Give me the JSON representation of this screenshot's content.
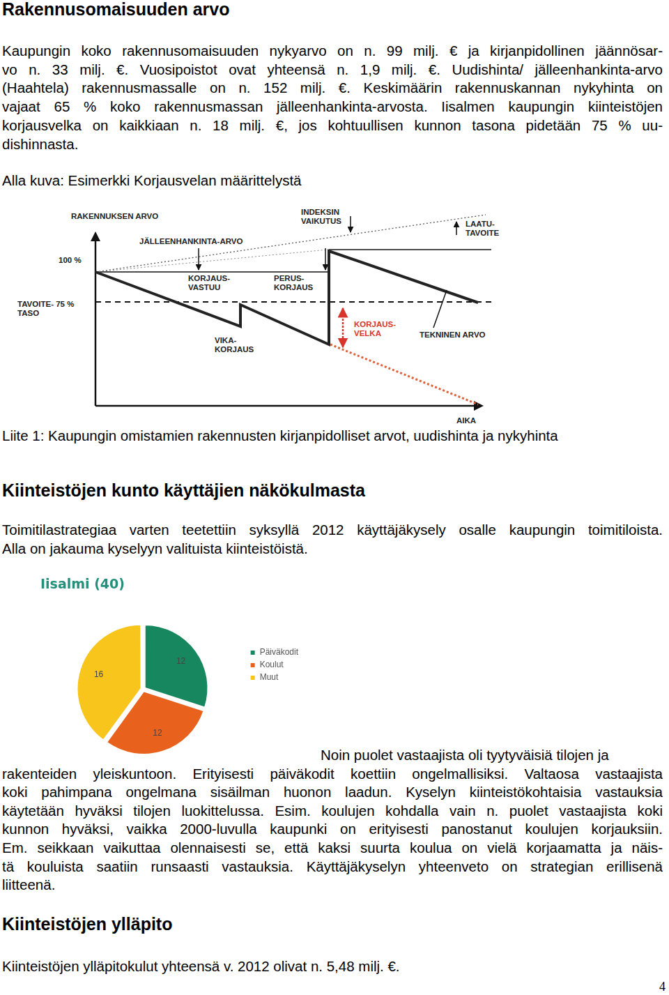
{
  "heading_1": "Rakennusomaisuuden arvo",
  "paragraph_1": [
    "Kaupungin koko rakennusomaisuuden nykyarvo on n. 99 milj. € ja kirjanpidollinen jäännösar-",
    "vo n. 33 milj. €. Vuosipoistot ovat yhteensä n. 1,9 milj. €. Uudishinta/ jälleenhankinta-arvo",
    "(Haahtela) rakennusmassalle on n. 152 milj. €. Keskimäärin rakennuskannan nykyhinta on",
    "vajaat 65 % koko rakennusmassan jälleenhankinta-arvosta. Iisalmen kaupungin kiinteistöjen",
    "korjausvelka on kaikkiaan n. 18 milj. €, jos kohtuullisen kunnon tasona pidetään 75 % uu-",
    "dishinnasta."
  ],
  "figure_caption": "Alla kuva: Esimerkki Korjausvelan määrittelystä",
  "diagram": {
    "building_value": "RAKENNUKSEN ARVO",
    "replacement_value": "JÄLLEENHANKINTA-ARVO",
    "index_effect": [
      "INDEKSIN",
      "VAIKUTUS"
    ],
    "quality_target": [
      "LAATU-",
      "TAVOITE"
    ],
    "level_100": "100 %",
    "target_level": [
      "TAVOITE-  75 %",
      "TASO"
    ],
    "repair_responsibility": [
      "KORJAUS-",
      "VASTUU"
    ],
    "renovation": [
      "PERUS-",
      "KORJAUS"
    ],
    "fault_repair": [
      "VIKA-",
      "KORJAUS"
    ],
    "repair_debt": [
      "KORJAUS-",
      "VELKA"
    ],
    "technical_value": "TEKNINEN ARVO",
    "time_axis": "AIKA"
  },
  "appendix_note": "Liite 1: Kaupungin omistamien rakennusten kirjanpidolliset arvot, uudishinta ja nykyhinta",
  "heading_2": "Kiinteistöjen kunto käyttäjien näkökulmasta",
  "paragraph_2": [
    "Toimitilastrategiaa varten teetettiin syksyllä 2012 käyttäjäkysely osalle kaupungin toimitiloista.",
    "Alla on jakauma kyselyyn valituista kiinteistöistä."
  ],
  "chart_data": {
    "type": "pie",
    "title": "Iisalmi (40)",
    "categories": [
      "Päiväkodit",
      "Koulut",
      "Muut"
    ],
    "values": [
      12,
      12,
      16
    ],
    "colors": [
      "#17875f",
      "#e8621d",
      "#f7c51c"
    ],
    "data_labels": true,
    "legend": "right"
  },
  "paragraph_3": [
    "Noin puolet vastaajista oli tyytyväisiä tilojen ja",
    "rakenteiden yleiskuntoon. Erityisesti päiväkodit koettiin ongelmallisiksi. Valtaosa vastaajista",
    "koki pahimpana ongelmana sisäilman huonon laadun. Kyselyn kiinteistökohtaisia vastauksia",
    "käytetään hyväksi tilojen luokittelussa. Esim. koulujen kohdalla vain n. puolet vastaajista koki",
    "kunnon hyväksi, vaikka 2000-luvulla kaupunki on erityisesti panostanut koulujen korjauksiin.",
    "Em. seikkaan vaikuttaa olennaisesti se, että kaksi suurta koulua on vielä korjaamatta ja näis-",
    "tä kouluista saatiin runsaasti vastauksia. Käyttäjäkyselyn yhteenveto on strategian erillisenä",
    "liitteenä."
  ],
  "heading_3": "Kiinteistöjen ylläpito",
  "paragraph_4": [
    "Kiinteistöjen ylläpitokulut yhteensä v. 2012 olivat n. 5,48 milj. €."
  ],
  "page_number": "4"
}
